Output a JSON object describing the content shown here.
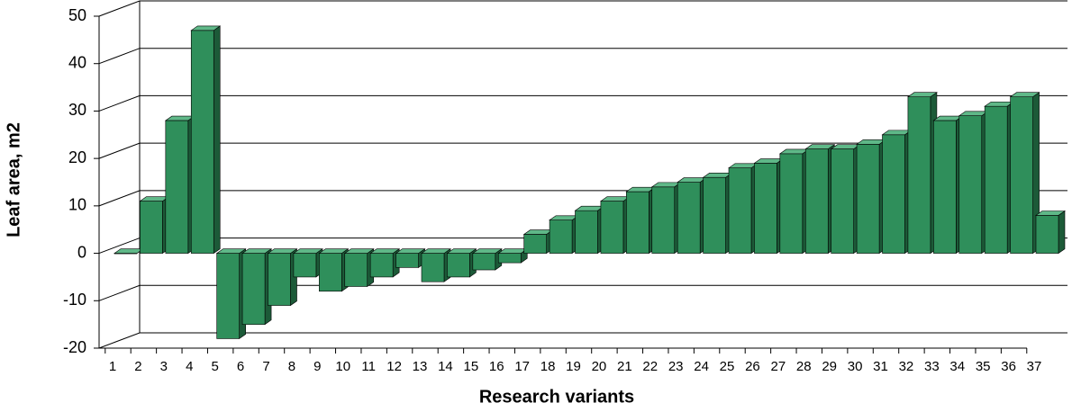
{
  "chart_data": {
    "type": "bar3d",
    "x_label": "Research variants",
    "y_label": "Leaf area, m2",
    "categories": [
      "1",
      "2",
      "3",
      "4",
      "5",
      "6",
      "7",
      "8",
      "9",
      "10",
      "11",
      "12",
      "13",
      "14",
      "15",
      "16",
      "17",
      "18",
      "19",
      "20",
      "21",
      "22",
      "23",
      "24",
      "25",
      "26",
      "27",
      "28",
      "29",
      "30",
      "31",
      "32",
      "33",
      "34",
      "35",
      "36",
      "37"
    ],
    "values": [
      0,
      11,
      28,
      47,
      -18,
      -15,
      -11,
      -5,
      -8,
      -7,
      -5,
      -3,
      -6,
      -5,
      -3.5,
      -2,
      4,
      7,
      9,
      11,
      13,
      14,
      15,
      16,
      18,
      19,
      21,
      22,
      22,
      23,
      25,
      33,
      28,
      29,
      31,
      33,
      8
    ],
    "color": "#2f8f5b",
    "ylim": [
      -20,
      50
    ],
    "yticks": [
      -20,
      -10,
      0,
      10,
      20,
      30,
      40,
      50
    ],
    "grid": true
  }
}
